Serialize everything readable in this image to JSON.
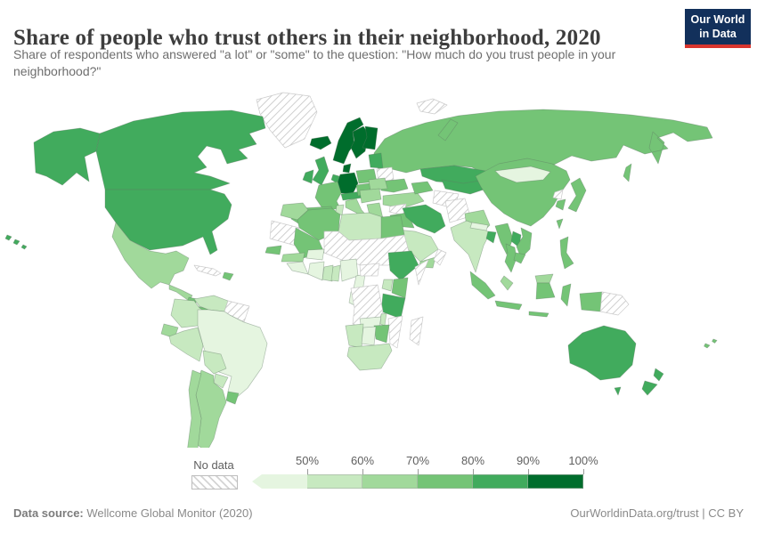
{
  "header": {
    "title": "Share of people who trust others in their neighborhood, 2020",
    "subtitle": "Share of respondents who answered \"a lot\" or \"some\" to the question: \"How much do you trust people in your neighborhood?\"",
    "logo": {
      "line1": "Our World",
      "line2": "in Data",
      "bg_color": "#12305b",
      "accent_color": "#d8352e"
    }
  },
  "legend": {
    "no_data_label": "No data",
    "tick_labels": [
      "50%",
      "60%",
      "70%",
      "80%",
      "90%",
      "100%"
    ],
    "bins": [
      {
        "id": "lt50",
        "range": "<50%",
        "color": "#e5f5e0"
      },
      {
        "id": "50-60",
        "range": "50%-60%",
        "color": "#c7e9c0"
      },
      {
        "id": "60-70",
        "range": "60%-70%",
        "color": "#a1d99b"
      },
      {
        "id": "70-80",
        "range": "70%-80%",
        "color": "#74c476"
      },
      {
        "id": "80-90",
        "range": "80%-90%",
        "color": "#41ab5d"
      },
      {
        "id": "90-100",
        "range": "90%-100%",
        "color": "#006d2c"
      },
      {
        "id": "no-data",
        "range": "No data",
        "color": null,
        "pattern": "diagonal-hatch"
      }
    ]
  },
  "footer": {
    "source_label": "Data source:",
    "source_value": "Wellcome Global Monitor (2020)",
    "link": "OurWorldinData.org/trust | CC BY"
  },
  "chart_data": {
    "type": "choropleth_map",
    "title": "Share of people who trust others in their neighborhood, 2020",
    "unit": "% answering \"a lot\" or \"some\"",
    "legend_bins": [
      "<50%",
      "50%-60%",
      "60%-70%",
      "70%-80%",
      "80%-90%",
      "90%-100%",
      "No data"
    ],
    "regions": [
      {
        "id": "greenland",
        "name": "Greenland",
        "bin": "no-data"
      },
      {
        "id": "svalbard",
        "name": "Svalbard",
        "bin": "no-data"
      },
      {
        "id": "canada",
        "name": "Canada",
        "bin": "80-90"
      },
      {
        "id": "alaska",
        "name": "United States (Alaska)",
        "bin": "80-90"
      },
      {
        "id": "hawaii",
        "name": "United States (Hawaii)",
        "bin": "80-90"
      },
      {
        "id": "usa",
        "name": "United States",
        "bin": "80-90"
      },
      {
        "id": "mexico",
        "name": "Mexico",
        "bin": "60-70"
      },
      {
        "id": "guatemala-honduras",
        "name": "Guatemala & Honduras",
        "bin": "60-70"
      },
      {
        "id": "nicaragua",
        "name": "Nicaragua",
        "bin": "70-80"
      },
      {
        "id": "costa-rica-panama",
        "name": "Costa Rica & Panama",
        "bin": "70-80"
      },
      {
        "id": "cuba",
        "name": "Cuba",
        "bin": "no-data"
      },
      {
        "id": "hispaniola",
        "name": "Dominican Republic & Haiti",
        "bin": "70-80"
      },
      {
        "id": "colombia",
        "name": "Colombia",
        "bin": "50-60"
      },
      {
        "id": "venezuela",
        "name": "Venezuela",
        "bin": "50-60"
      },
      {
        "id": "guyana-suriname",
        "name": "Guyana & Suriname",
        "bin": "no-data"
      },
      {
        "id": "ecuador",
        "name": "Ecuador",
        "bin": "60-70"
      },
      {
        "id": "peru",
        "name": "Peru",
        "bin": "50-60"
      },
      {
        "id": "brazil",
        "name": "Brazil",
        "bin": "lt50"
      },
      {
        "id": "bolivia",
        "name": "Bolivia",
        "bin": "50-60"
      },
      {
        "id": "paraguay",
        "name": "Paraguay",
        "bin": "50-60"
      },
      {
        "id": "uruguay",
        "name": "Uruguay",
        "bin": "70-80"
      },
      {
        "id": "argentina",
        "name": "Argentina",
        "bin": "60-70"
      },
      {
        "id": "chile",
        "name": "Chile",
        "bin": "60-70"
      },
      {
        "id": "russia",
        "name": "Russia",
        "bin": "70-80"
      },
      {
        "id": "kazakhstan",
        "name": "Kazakhstan",
        "bin": "80-90"
      },
      {
        "id": "uzbek-kyrgyz",
        "name": "Uzbekistan & Kyrgyzstan",
        "bin": "80-90"
      },
      {
        "id": "turkmenistan",
        "name": "Turkmenistan",
        "bin": "no-data"
      },
      {
        "id": "iceland",
        "name": "Iceland",
        "bin": "90-100"
      },
      {
        "id": "norway",
        "name": "Norway",
        "bin": "90-100"
      },
      {
        "id": "sweden",
        "name": "Sweden",
        "bin": "90-100"
      },
      {
        "id": "finland",
        "name": "Finland",
        "bin": "90-100"
      },
      {
        "id": "denmark",
        "name": "Denmark",
        "bin": "90-100"
      },
      {
        "id": "uk",
        "name": "United Kingdom",
        "bin": "80-90"
      },
      {
        "id": "ireland",
        "name": "Ireland",
        "bin": "80-90"
      },
      {
        "id": "germany",
        "name": "Germany",
        "bin": "90-100"
      },
      {
        "id": "benelux",
        "name": "Netherlands & Belgium",
        "bin": "80-90"
      },
      {
        "id": "france",
        "name": "France",
        "bin": "70-80"
      },
      {
        "id": "spain",
        "name": "Spain",
        "bin": "70-80"
      },
      {
        "id": "portugal",
        "name": "Portugal",
        "bin": "70-80"
      },
      {
        "id": "switzerland-austria",
        "name": "Switzerland & Austria",
        "bin": "80-90"
      },
      {
        "id": "italy",
        "name": "Italy",
        "bin": "60-70"
      },
      {
        "id": "poland",
        "name": "Poland",
        "bin": "70-80"
      },
      {
        "id": "czech-hungary",
        "name": "Czechia, Slovakia & Hungary",
        "bin": "70-80"
      },
      {
        "id": "baltics",
        "name": "Baltic states",
        "bin": "80-90"
      },
      {
        "id": "belarus",
        "name": "Belarus",
        "bin": "no-data"
      },
      {
        "id": "ukraine",
        "name": "Ukraine",
        "bin": "70-80"
      },
      {
        "id": "romania",
        "name": "Romania",
        "bin": "60-70"
      },
      {
        "id": "balkans",
        "name": "Balkans",
        "bin": "60-70"
      },
      {
        "id": "greece",
        "name": "Greece",
        "bin": "60-70"
      },
      {
        "id": "turkey",
        "name": "Turkey",
        "bin": "60-70"
      },
      {
        "id": "caucasus",
        "name": "Georgia, Armenia & Azerbaijan",
        "bin": "70-80"
      },
      {
        "id": "syria",
        "name": "Syria",
        "bin": "no-data"
      },
      {
        "id": "iraq",
        "name": "Iraq",
        "bin": "70-80"
      },
      {
        "id": "israel-jordan",
        "name": "Israel & Jordan",
        "bin": "70-80"
      },
      {
        "id": "iran",
        "name": "Iran",
        "bin": "80-90"
      },
      {
        "id": "afghanistan",
        "name": "Afghanistan",
        "bin": "no-data"
      },
      {
        "id": "pakistan",
        "name": "Pakistan",
        "bin": "60-70"
      },
      {
        "id": "saudi-arabia",
        "name": "Saudi Arabia",
        "bin": "50-60"
      },
      {
        "id": "yemen",
        "name": "Yemen",
        "bin": "60-70"
      },
      {
        "id": "oman-uae",
        "name": "Oman & United Arab Emirates",
        "bin": "no-data"
      },
      {
        "id": "india",
        "name": "India",
        "bin": "50-60"
      },
      {
        "id": "nepal",
        "name": "Nepal",
        "bin": "lt50"
      },
      {
        "id": "bangladesh",
        "name": "Bangladesh",
        "bin": "80-90"
      },
      {
        "id": "sri-lanka",
        "name": "Sri Lanka",
        "bin": "70-80"
      },
      {
        "id": "china",
        "name": "China",
        "bin": "70-80"
      },
      {
        "id": "mongolia",
        "name": "Mongolia",
        "bin": "lt50"
      },
      {
        "id": "north-korea",
        "name": "North Korea",
        "bin": "no-data"
      },
      {
        "id": "south-korea",
        "name": "South Korea",
        "bin": "70-80"
      },
      {
        "id": "japan",
        "name": "Japan",
        "bin": "70-80"
      },
      {
        "id": "taiwan",
        "name": "Taiwan",
        "bin": "70-80"
      },
      {
        "id": "myanmar",
        "name": "Myanmar",
        "bin": "70-80"
      },
      {
        "id": "laos",
        "name": "Laos",
        "bin": "80-90"
      },
      {
        "id": "vietnam",
        "name": "Vietnam",
        "bin": "70-80"
      },
      {
        "id": "thailand",
        "name": "Thailand",
        "bin": "70-80"
      },
      {
        "id": "cambodia",
        "name": "Cambodia",
        "bin": "70-80"
      },
      {
        "id": "malaysia",
        "name": "Malaysia (peninsular)",
        "bin": "60-70"
      },
      {
        "id": "sumatra",
        "name": "Indonesia (Sumatra)",
        "bin": "70-80"
      },
      {
        "id": "java",
        "name": "Indonesia (Java)",
        "bin": "70-80"
      },
      {
        "id": "borneo-my",
        "name": "Malaysia (Borneo)",
        "bin": "60-70"
      },
      {
        "id": "borneo-id",
        "name": "Indonesia (Kalimantan)",
        "bin": "70-80"
      },
      {
        "id": "sulawesi",
        "name": "Indonesia (Sulawesi)",
        "bin": "70-80"
      },
      {
        "id": "lesser-sunda",
        "name": "Indonesia (Lesser Sunda)",
        "bin": "70-80"
      },
      {
        "id": "philippines",
        "name": "Philippines",
        "bin": "70-80"
      },
      {
        "id": "west-papua",
        "name": "Indonesia (Papua)",
        "bin": "70-80"
      },
      {
        "id": "png",
        "name": "Papua New Guinea",
        "bin": "no-data"
      },
      {
        "id": "australia",
        "name": "Australia",
        "bin": "80-90"
      },
      {
        "id": "new-zealand",
        "name": "New Zealand",
        "bin": "80-90"
      },
      {
        "id": "fiji",
        "name": "Fiji",
        "bin": "70-80"
      },
      {
        "id": "morocco",
        "name": "Morocco",
        "bin": "60-70"
      },
      {
        "id": "algeria",
        "name": "Algeria",
        "bin": "70-80"
      },
      {
        "id": "tunisia",
        "name": "Tunisia",
        "bin": "50-60"
      },
      {
        "id": "libya",
        "name": "Libya",
        "bin": "50-60"
      },
      {
        "id": "egypt",
        "name": "Egypt",
        "bin": "70-80"
      },
      {
        "id": "mauritania",
        "name": "Mauritania & Western Sahara",
        "bin": "no-data"
      },
      {
        "id": "mali",
        "name": "Mali",
        "bin": "70-80"
      },
      {
        "id": "sahel",
        "name": "Niger, Chad & Sudan",
        "bin": "no-data"
      },
      {
        "id": "senegal",
        "name": "Senegal & Gambia",
        "bin": "70-80"
      },
      {
        "id": "guinea",
        "name": "Guinea",
        "bin": "60-70"
      },
      {
        "id": "sierra-liberia",
        "name": "Sierra Leone & Liberia",
        "bin": "lt50"
      },
      {
        "id": "ivory-coast",
        "name": "Cote d'Ivoire",
        "bin": "lt50"
      },
      {
        "id": "burkina",
        "name": "Burkina Faso",
        "bin": "lt50"
      },
      {
        "id": "ghana",
        "name": "Ghana",
        "bin": "50-60"
      },
      {
        "id": "togo-benin",
        "name": "Togo & Benin",
        "bin": "50-60"
      },
      {
        "id": "nigeria",
        "name": "Nigeria",
        "bin": "lt50"
      },
      {
        "id": "cameroon",
        "name": "Cameroon",
        "bin": "lt50"
      },
      {
        "id": "gabon-congo",
        "name": "Gabon & Congo",
        "bin": "lt50"
      },
      {
        "id": "car",
        "name": "Central African Republic",
        "bin": "no-data"
      },
      {
        "id": "ethiopia",
        "name": "Ethiopia",
        "bin": "80-90"
      },
      {
        "id": "somalia",
        "name": "Somalia",
        "bin": "no-data"
      },
      {
        "id": "kenya",
        "name": "Kenya",
        "bin": "70-80"
      },
      {
        "id": "uganda",
        "name": "Uganda",
        "bin": "50-60"
      },
      {
        "id": "tanzania",
        "name": "Tanzania",
        "bin": "80-90"
      },
      {
        "id": "drc-angola",
        "name": "DR Congo & Angola",
        "bin": "no-data"
      },
      {
        "id": "zambia",
        "name": "Zambia",
        "bin": "lt50"
      },
      {
        "id": "malawi",
        "name": "Malawi",
        "bin": "50-60"
      },
      {
        "id": "mozambique",
        "name": "Mozambique",
        "bin": "no-data"
      },
      {
        "id": "madagascar",
        "name": "Madagascar",
        "bin": "no-data"
      },
      {
        "id": "zimbabwe",
        "name": "Zimbabwe",
        "bin": "70-80"
      },
      {
        "id": "namibia",
        "name": "Namibia",
        "bin": "50-60"
      },
      {
        "id": "botswana",
        "name": "Botswana",
        "bin": "lt50"
      },
      {
        "id": "south-africa",
        "name": "South Africa",
        "bin": "50-60"
      }
    ]
  }
}
